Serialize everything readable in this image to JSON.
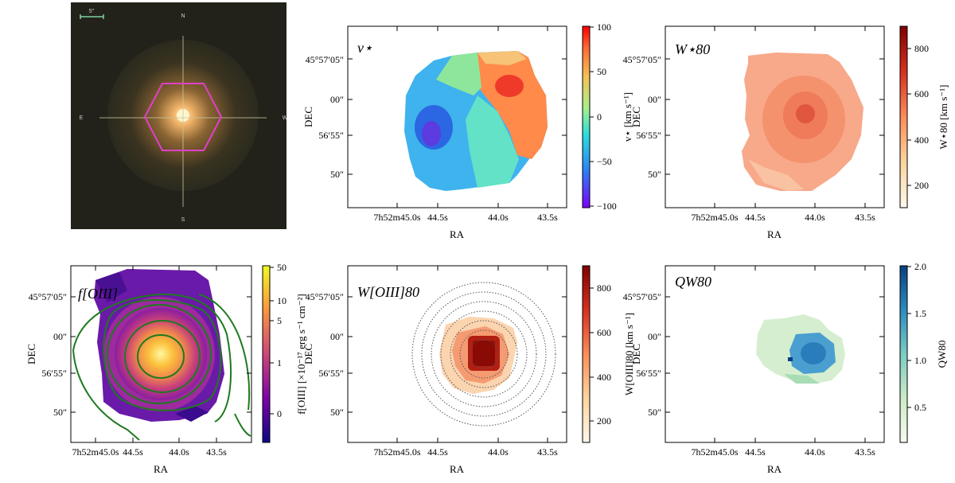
{
  "chart_data": [
    {
      "type": "image",
      "panel": "sdss-optical-image",
      "compass": {
        "north": "N",
        "south": "S",
        "east": "E",
        "west": "W"
      },
      "scale_bar_label": "5\"",
      "aperture_shape": "hexagon",
      "aperture_color": "#e040c8"
    },
    {
      "type": "heatmap",
      "panel": "stellar-velocity",
      "label": "v⋆",
      "xlabel": "RA",
      "ylabel": "DEC",
      "xticks": [
        "7h52m45.0s",
        "44.5s",
        "44.0s",
        "43.5s"
      ],
      "yticks": [
        "45°57′05″",
        "00″",
        "56′55″",
        "50″"
      ],
      "colorbar": {
        "label": "v⋆ [km s⁻¹]",
        "ticks": [
          "100",
          "50",
          "0",
          "−50",
          "−100"
        ],
        "range": [
          -100,
          100
        ],
        "cmap": "rainbow"
      }
    },
    {
      "type": "heatmap",
      "panel": "stellar-w80",
      "label": "W⋆80",
      "xlabel": "RA",
      "ylabel": "DEC",
      "xticks": [
        "7h52m45.0s",
        "44.5s",
        "44.0s",
        "43.5s"
      ],
      "yticks": [
        "45°57′05″",
        "00″",
        "56′55″",
        "50″"
      ],
      "colorbar": {
        "label": "W⋆80 [km s⁻¹]",
        "ticks": [
          "800",
          "600",
          "400",
          "200"
        ],
        "range": [
          100,
          900
        ],
        "cmap": "OrRd"
      }
    },
    {
      "type": "heatmap",
      "panel": "oiii-flux",
      "label": "f[OIII]",
      "xlabel": "RA",
      "ylabel": "DEC",
      "xticks": [
        "7h52m45.0s",
        "44.5s",
        "44.0s",
        "43.5s"
      ],
      "yticks": [
        "45°57′05″",
        "00″",
        "56′55″",
        "50″"
      ],
      "contours": "green",
      "colorbar": {
        "label": "f[OIII] [×10⁻¹⁷ erg s⁻¹ cm⁻²]",
        "ticks": [
          "50",
          "10",
          "5",
          "1",
          "0"
        ],
        "cmap": "plasma"
      }
    },
    {
      "type": "heatmap",
      "panel": "oiii-w80",
      "label": "W[OIII]80",
      "xlabel": "RA",
      "ylabel": "DEC",
      "xticks": [
        "7h52m45.0s",
        "44.5s",
        "44.0s",
        "43.5s"
      ],
      "yticks": [
        "45°57′05″",
        "00″",
        "56′55″",
        "50″"
      ],
      "rings": "dotted concentric circles",
      "colorbar": {
        "label": "W[OIII]80 [km s⁻¹]",
        "ticks": [
          "800",
          "600",
          "400",
          "200"
        ],
        "range": [
          100,
          900
        ],
        "cmap": "OrRd"
      }
    },
    {
      "type": "heatmap",
      "panel": "w80-ratio",
      "label": "QW80",
      "xlabel": "RA",
      "ylabel": "DEC",
      "xticks": [
        "7h52m45.0s",
        "44.5s",
        "44.0s",
        "43.5s"
      ],
      "yticks": [
        "45°57′05″",
        "00″",
        "56′55″",
        "50″"
      ],
      "colorbar": {
        "label": "QW80",
        "ticks": [
          "2.0",
          "1.5",
          "1.0",
          "0.5"
        ],
        "range": [
          0.1,
          2.0
        ],
        "cmap": "GnBu"
      }
    }
  ]
}
